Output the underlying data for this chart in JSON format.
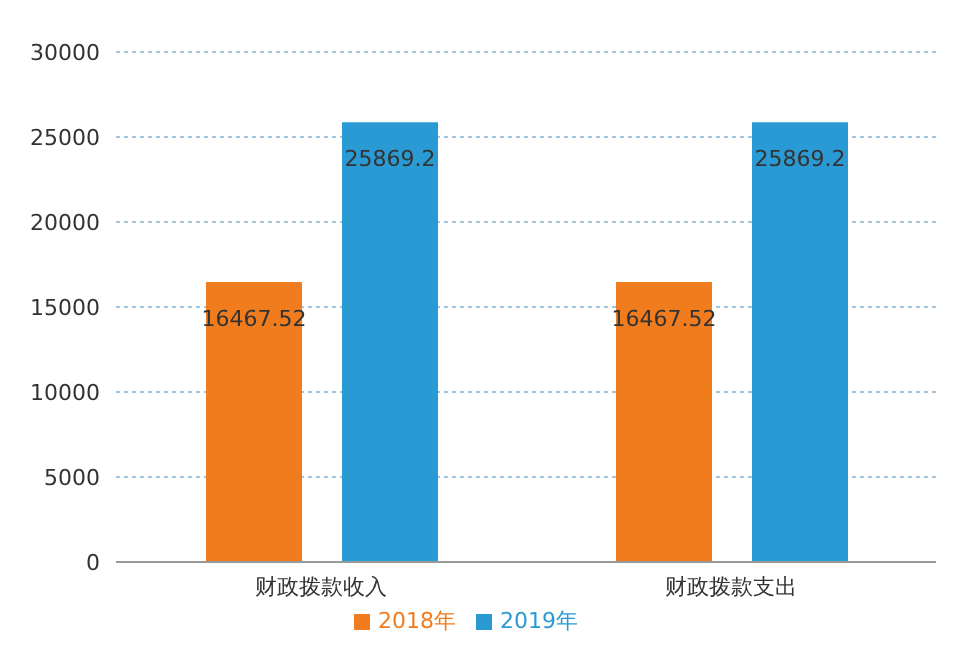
{
  "chart_data": {
    "type": "bar",
    "categories": [
      "财政拨款收入",
      "财政拨款支出"
    ],
    "series": [
      {
        "name": "2018年",
        "color": "#f07c1e",
        "values": [
          16467.52,
          16467.52
        ]
      },
      {
        "name": "2019年",
        "color": "#2a9ad4",
        "values": [
          25869.2,
          25869.2
        ]
      }
    ],
    "ylim": [
      0,
      30000
    ],
    "yticks": [
      0,
      5000,
      10000,
      15000,
      20000,
      25000,
      30000
    ],
    "grid": "y",
    "legend": "bottom",
    "data_labels": true
  }
}
